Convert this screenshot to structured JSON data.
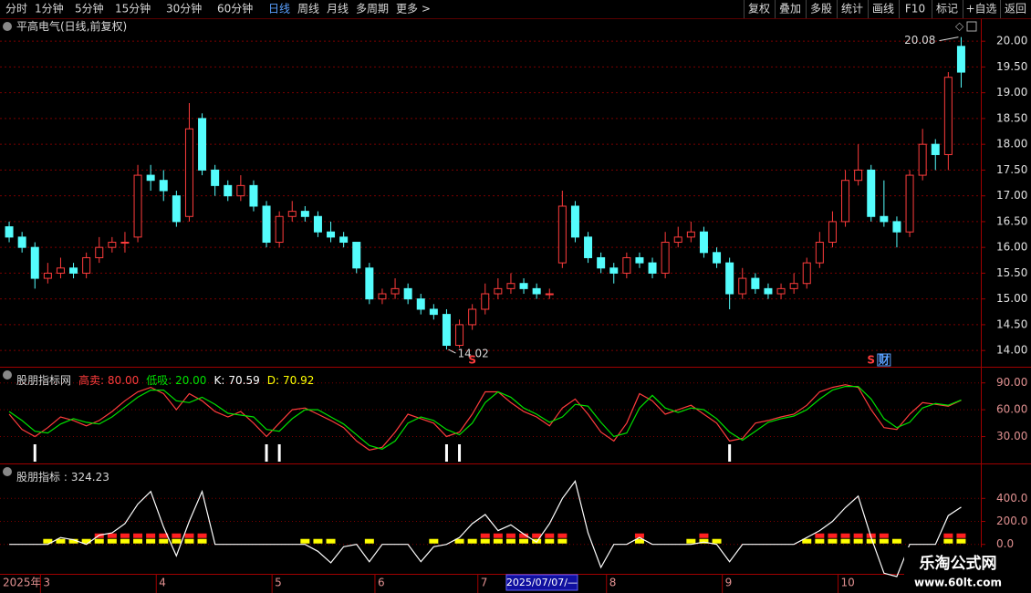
{
  "toolbar": {
    "left": [
      "分时",
      "1分钟",
      "5分钟",
      "15分钟",
      "30分钟",
      "60分钟",
      "日线",
      "周线",
      "月线",
      "多周期",
      "更多 >"
    ],
    "active": 6,
    "right": [
      "复权",
      "叠加",
      "多股",
      "统计",
      "画线",
      "F10",
      "标记",
      "+自选",
      "返回"
    ]
  },
  "chart_data": [
    {
      "type": "candlestick",
      "title": "平高电气(日线,前复权)",
      "up_color": "#ff3c3c",
      "down_color": "#54fcfc",
      "ylim": [
        13.72,
        20.41
      ],
      "yticks": [
        {
          "value": 14,
          "label": "14.00"
        },
        {
          "value": 14.5,
          "label": "14.50"
        },
        {
          "value": 15,
          "label": "15.00"
        },
        {
          "value": 15.5,
          "label": "15.50"
        },
        {
          "value": 16,
          "label": "16.00"
        },
        {
          "value": 16.5,
          "label": "16.50"
        },
        {
          "value": 17,
          "label": "17.00"
        },
        {
          "value": 17.5,
          "label": "17.50"
        },
        {
          "value": 18,
          "label": "18.00"
        },
        {
          "value": 18.5,
          "label": "18.50"
        },
        {
          "value": 19,
          "label": "19.00"
        },
        {
          "value": 19.5,
          "label": "19.50"
        },
        {
          "value": 20,
          "label": "20.00"
        }
      ],
      "candles": [
        [
          16.4,
          16.5,
          16.1,
          16.2
        ],
        [
          16.2,
          16.3,
          15.9,
          16.0
        ],
        [
          16.0,
          16.1,
          15.2,
          15.4
        ],
        [
          15.4,
          15.7,
          15.3,
          15.5
        ],
        [
          15.5,
          15.8,
          15.4,
          15.6
        ],
        [
          15.6,
          15.7,
          15.4,
          15.5
        ],
        [
          15.5,
          15.9,
          15.4,
          15.8
        ],
        [
          15.8,
          16.2,
          15.7,
          16.0
        ],
        [
          16.0,
          16.2,
          15.9,
          16.1
        ],
        [
          16.1,
          16.3,
          15.9,
          16.1
        ],
        [
          16.2,
          17.6,
          16.1,
          17.4
        ],
        [
          17.4,
          17.6,
          17.1,
          17.3
        ],
        [
          17.3,
          17.5,
          16.9,
          17.1
        ],
        [
          17.0,
          17.1,
          16.4,
          16.5
        ],
        [
          16.6,
          18.8,
          16.5,
          18.3
        ],
        [
          18.5,
          18.6,
          17.4,
          17.5
        ],
        [
          17.5,
          17.6,
          17.0,
          17.2
        ],
        [
          17.2,
          17.3,
          16.9,
          17.0
        ],
        [
          17.0,
          17.4,
          16.9,
          17.2
        ],
        [
          17.2,
          17.3,
          16.7,
          16.8
        ],
        [
          16.8,
          16.9,
          16.0,
          16.1
        ],
        [
          16.1,
          16.7,
          16.0,
          16.6
        ],
        [
          16.6,
          16.9,
          16.5,
          16.7
        ],
        [
          16.7,
          16.8,
          16.5,
          16.6
        ],
        [
          16.6,
          16.7,
          16.2,
          16.3
        ],
        [
          16.3,
          16.5,
          16.1,
          16.2
        ],
        [
          16.2,
          16.3,
          16.0,
          16.1
        ],
        [
          16.1,
          16.1,
          15.5,
          15.6
        ],
        [
          15.6,
          15.7,
          14.9,
          15.0
        ],
        [
          15.0,
          15.2,
          14.9,
          15.1
        ],
        [
          15.1,
          15.4,
          15.0,
          15.2
        ],
        [
          15.2,
          15.3,
          14.9,
          15.0
        ],
        [
          15.0,
          15.1,
          14.7,
          14.8
        ],
        [
          14.8,
          14.9,
          14.6,
          14.7
        ],
        [
          14.7,
          14.8,
          14.02,
          14.1
        ],
        [
          14.1,
          14.6,
          14.05,
          14.5
        ],
        [
          14.5,
          14.9,
          14.4,
          14.8
        ],
        [
          14.8,
          15.3,
          14.7,
          15.1
        ],
        [
          15.1,
          15.4,
          15.0,
          15.2
        ],
        [
          15.2,
          15.5,
          15.1,
          15.3
        ],
        [
          15.3,
          15.4,
          15.1,
          15.2
        ],
        [
          15.2,
          15.3,
          15.0,
          15.1
        ],
        [
          15.1,
          15.2,
          15.0,
          15.1
        ],
        [
          15.7,
          17.1,
          15.6,
          16.8
        ],
        [
          16.8,
          16.9,
          16.1,
          16.2
        ],
        [
          16.2,
          16.3,
          15.7,
          15.8
        ],
        [
          15.8,
          15.9,
          15.5,
          15.6
        ],
        [
          15.6,
          15.7,
          15.3,
          15.5
        ],
        [
          15.5,
          15.9,
          15.4,
          15.8
        ],
        [
          15.8,
          15.9,
          15.6,
          15.7
        ],
        [
          15.7,
          15.8,
          15.4,
          15.5
        ],
        [
          15.5,
          16.3,
          15.4,
          16.1
        ],
        [
          16.1,
          16.4,
          16.0,
          16.2
        ],
        [
          16.2,
          16.5,
          16.1,
          16.3
        ],
        [
          16.3,
          16.4,
          15.8,
          15.9
        ],
        [
          15.9,
          16.0,
          15.6,
          15.7
        ],
        [
          15.7,
          15.8,
          14.8,
          15.1
        ],
        [
          15.1,
          15.6,
          15.0,
          15.4
        ],
        [
          15.4,
          15.5,
          15.1,
          15.2
        ],
        [
          15.2,
          15.3,
          15.0,
          15.1
        ],
        [
          15.1,
          15.3,
          15.0,
          15.2
        ],
        [
          15.2,
          15.5,
          15.1,
          15.3
        ],
        [
          15.3,
          15.8,
          15.2,
          15.7
        ],
        [
          15.7,
          16.3,
          15.6,
          16.1
        ],
        [
          16.1,
          16.7,
          16.0,
          16.5
        ],
        [
          16.5,
          17.5,
          16.4,
          17.3
        ],
        [
          17.3,
          18.0,
          17.2,
          17.5
        ],
        [
          17.5,
          17.6,
          16.5,
          16.6
        ],
        [
          16.6,
          17.3,
          16.4,
          16.5
        ],
        [
          16.5,
          16.6,
          16.0,
          16.3
        ],
        [
          16.3,
          17.5,
          16.2,
          17.4
        ],
        [
          17.4,
          18.3,
          17.3,
          18.0
        ],
        [
          18.0,
          18.1,
          17.5,
          17.8
        ],
        [
          17.8,
          19.4,
          17.5,
          19.3
        ],
        [
          19.9,
          20.08,
          19.1,
          19.4
        ]
      ],
      "markers": [
        {
          "index": 36,
          "label": "S",
          "color": "#ff3c3c"
        },
        {
          "index": 67,
          "label": "S",
          "color": "#ff3c3c"
        },
        {
          "index": 68,
          "label": "财",
          "color": "#5aa0ff"
        }
      ]
    },
    {
      "type": "line",
      "title": "股朋指标网",
      "params": [
        {
          "label": "高卖: 80.00",
          "color": "#ff3c3c"
        },
        {
          "label": "低吸: 20.00",
          "color": "#00e000"
        }
      ],
      "ylim": [
        2,
        105
      ],
      "yticks": [
        {
          "value": 30,
          "label": "30.00"
        },
        {
          "value": 60,
          "label": "60.00"
        },
        {
          "value": 90,
          "label": "90.00"
        }
      ],
      "series": [
        {
          "name": "K:",
          "color": "#ff3c3c",
          "legend_color": "#ffffff",
          "values": [
            55,
            38,
            30,
            40,
            52,
            48,
            42,
            48,
            58,
            70,
            80,
            85,
            78,
            60,
            78,
            70,
            58,
            52,
            58,
            45,
            30,
            45,
            60,
            62,
            55,
            48,
            40,
            25,
            15,
            18,
            35,
            55,
            50,
            45,
            30,
            35,
            55,
            80,
            80,
            68,
            58,
            52,
            42,
            62,
            72,
            55,
            35,
            25,
            45,
            78,
            70,
            55,
            60,
            65,
            55,
            45,
            25,
            28,
            45,
            48,
            52,
            55,
            65,
            80,
            85,
            88,
            85,
            60,
            40,
            38,
            55,
            68,
            66,
            64,
            70.59
          ]
        },
        {
          "name": "D:",
          "color": "#00e000",
          "legend_color": "#ffff00",
          "values": [
            58,
            48,
            36,
            34,
            44,
            50,
            46,
            44,
            52,
            63,
            74,
            82,
            82,
            70,
            68,
            74,
            66,
            56,
            54,
            52,
            38,
            36,
            50,
            60,
            60,
            52,
            44,
            32,
            20,
            16,
            25,
            45,
            52,
            48,
            38,
            32,
            45,
            68,
            80,
            74,
            62,
            55,
            46,
            52,
            66,
            64,
            46,
            30,
            34,
            62,
            76,
            62,
            57,
            62,
            60,
            50,
            35,
            26,
            36,
            46,
            50,
            53,
            60,
            72,
            82,
            86,
            86,
            72,
            50,
            40,
            46,
            62,
            67,
            65,
            70.92
          ]
        }
      ],
      "signals": [
        2,
        20,
        21,
        34,
        35,
        56
      ],
      "signal_color": "#ffffff"
    },
    {
      "type": "line",
      "title": "股朋指标 :",
      "color": "#ffffff",
      "ylim": [
        -240,
        672
      ],
      "yticks": [
        {
          "value": 0,
          "label": "0.0"
        },
        {
          "value": 200,
          "label": "200.0"
        },
        {
          "value": 400,
          "label": "400.0"
        }
      ],
      "values": [
        0,
        0,
        0,
        0,
        60,
        40,
        0,
        80,
        100,
        180,
        350,
        460,
        150,
        -100,
        200,
        460,
        0,
        0,
        0,
        0,
        0,
        0,
        0,
        0,
        -60,
        -160,
        -20,
        0,
        -150,
        0,
        0,
        0,
        -150,
        -20,
        0,
        60,
        180,
        260,
        120,
        170,
        90,
        20,
        180,
        400,
        550,
        100,
        -200,
        0,
        0,
        60,
        0,
        0,
        0,
        0,
        20,
        0,
        -150,
        0,
        0,
        0,
        0,
        0,
        60,
        120,
        200,
        320,
        420,
        60,
        -250,
        -280,
        0,
        0,
        0,
        250,
        324.23
      ],
      "yellow_marks": [
        3,
        4,
        5,
        6,
        7,
        8,
        9,
        10,
        11,
        12,
        13,
        14,
        15,
        23,
        24,
        25,
        28,
        33,
        35,
        36,
        37,
        38,
        39,
        40,
        41,
        42,
        43,
        49,
        53,
        54,
        55,
        62,
        63,
        64,
        65,
        66,
        67,
        68,
        69,
        73,
        74
      ],
      "yellow_color": "#ffff00",
      "red_marks": [
        7,
        8,
        9,
        10,
        11,
        12,
        13,
        14,
        15,
        37,
        38,
        39,
        40,
        41,
        42,
        43,
        49,
        54,
        63,
        64,
        65,
        66,
        67,
        68,
        73,
        74
      ],
      "red_color": "#ff2020"
    }
  ],
  "date_axis": {
    "year": "2025年",
    "months": [
      {
        "index": 3,
        "label": "3"
      },
      {
        "index": 12,
        "label": "4"
      },
      {
        "index": 21,
        "label": "5"
      },
      {
        "index": 29,
        "label": "6"
      },
      {
        "index": 37,
        "label": "7"
      },
      {
        "index": 47,
        "label": "8"
      },
      {
        "index": 56,
        "label": "9"
      },
      {
        "index": 65,
        "label": "10"
      }
    ],
    "cursor": {
      "index": 39,
      "label": "2025/07/07/—"
    }
  },
  "watermark": {
    "title": "乐淘公式网",
    "url": "www.60lt.com"
  }
}
